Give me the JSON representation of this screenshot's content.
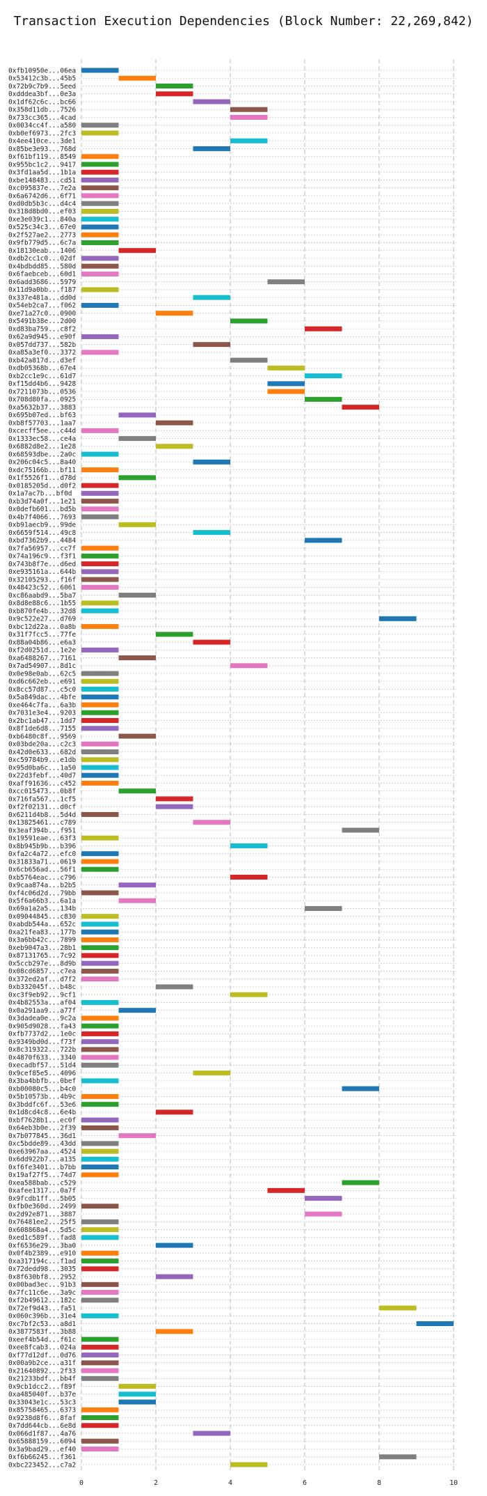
{
  "title": "Transaction Execution Dependencies (Block Number: 22,269,842)",
  "palette": [
    "#1f77b4",
    "#ff7f0e",
    "#2ca02c",
    "#d62728",
    "#9467bd",
    "#8c564b",
    "#e377c2",
    "#7f7f7f",
    "#bcbd22",
    "#17becf"
  ],
  "chart_data": {
    "type": "bar",
    "orientation": "horizontal-gantt",
    "title": "Transaction Execution Dependencies (Block Number: 22,269,842)",
    "xlabel": "",
    "ylabel": "",
    "xlim": [
      0,
      10
    ],
    "xticks": [
      0,
      2,
      4,
      6,
      8,
      10
    ],
    "grid": true,
    "bars": [
      {
        "tx": "0xfb10950e...06ea",
        "start": 0,
        "end": 1
      },
      {
        "tx": "0x53412c3b...45b5",
        "start": 1,
        "end": 2
      },
      {
        "tx": "0x72b9c7b9...5eed",
        "start": 2,
        "end": 3
      },
      {
        "tx": "0xdddea3bf...0e3a",
        "start": 2,
        "end": 3
      },
      {
        "tx": "0x1df62c6c...bc66",
        "start": 3,
        "end": 4
      },
      {
        "tx": "0x358d11db...7526",
        "start": 4,
        "end": 5
      },
      {
        "tx": "0x733cc365...4cad",
        "start": 4,
        "end": 5
      },
      {
        "tx": "0x0034cc4f...a580",
        "start": 0,
        "end": 1
      },
      {
        "tx": "0xb0ef6973...2fc3",
        "start": 0,
        "end": 1
      },
      {
        "tx": "0x4ee410ce...3de1",
        "start": 4,
        "end": 5
      },
      {
        "tx": "0x85be3e93...768d",
        "start": 3,
        "end": 4
      },
      {
        "tx": "0xf61bf119...8549",
        "start": 0,
        "end": 1
      },
      {
        "tx": "0x955bc1c2...9417",
        "start": 0,
        "end": 1
      },
      {
        "tx": "0x3fd1aa5d...1b1a",
        "start": 0,
        "end": 1
      },
      {
        "tx": "0xbe148483...cd51",
        "start": 0,
        "end": 1
      },
      {
        "tx": "0xc095837e...7e2a",
        "start": 0,
        "end": 1
      },
      {
        "tx": "0x6a6742d6...6f71",
        "start": 0,
        "end": 1
      },
      {
        "tx": "0xd0db5b3c...d4c4",
        "start": 0,
        "end": 1
      },
      {
        "tx": "0x318d8bd0...ef03",
        "start": 0,
        "end": 1
      },
      {
        "tx": "0xe3e039c1...840a",
        "start": 0,
        "end": 1
      },
      {
        "tx": "0x525c34c3...67e0",
        "start": 0,
        "end": 1
      },
      {
        "tx": "0x2f527ae2...2773",
        "start": 0,
        "end": 1
      },
      {
        "tx": "0x9fb779d5...6c7a",
        "start": 0,
        "end": 1
      },
      {
        "tx": "0x18130eab...1406",
        "start": 1,
        "end": 2
      },
      {
        "tx": "0xdb2cc1c0...02df",
        "start": 0,
        "end": 1
      },
      {
        "tx": "0x4bdbdd85...580d",
        "start": 0,
        "end": 1
      },
      {
        "tx": "0x6faebceb...60d1",
        "start": 0,
        "end": 1
      },
      {
        "tx": "0x6add3686...5979",
        "start": 5,
        "end": 6
      },
      {
        "tx": "0x11d9a0bb...f187",
        "start": 0,
        "end": 1
      },
      {
        "tx": "0x337e481a...dd0d",
        "start": 3,
        "end": 4
      },
      {
        "tx": "0x54eb2ca7...f062",
        "start": 0,
        "end": 1
      },
      {
        "tx": "0xe71a27c0...0900",
        "start": 2,
        "end": 3
      },
      {
        "tx": "0x5491b38e...2d00",
        "start": 4,
        "end": 5
      },
      {
        "tx": "0xd83ba759...c8f2",
        "start": 6,
        "end": 7
      },
      {
        "tx": "0x62a9d945...e90f",
        "start": 0,
        "end": 1
      },
      {
        "tx": "0x057dd737...582b",
        "start": 3,
        "end": 4
      },
      {
        "tx": "0xa85a3ef0...3372",
        "start": 0,
        "end": 1
      },
      {
        "tx": "0xb42a817d...d3ef",
        "start": 4,
        "end": 5
      },
      {
        "tx": "0xdb05368b...67e4",
        "start": 5,
        "end": 6
      },
      {
        "tx": "0xb2cc1e9c...61d7",
        "start": 6,
        "end": 7
      },
      {
        "tx": "0xf15dd4b6...9428",
        "start": 5,
        "end": 6
      },
      {
        "tx": "0x7211073b...0536",
        "start": 5,
        "end": 6
      },
      {
        "tx": "0x708d80fa...0925",
        "start": 6,
        "end": 7
      },
      {
        "tx": "0xa5632b37...3883",
        "start": 7,
        "end": 8
      },
      {
        "tx": "0x695b07ed...bf63",
        "start": 1,
        "end": 2
      },
      {
        "tx": "0xb8f57703...1aa7",
        "start": 2,
        "end": 3
      },
      {
        "tx": "0xcecff5ee...c44d",
        "start": 0,
        "end": 1
      },
      {
        "tx": "0x1333ec58...ce4a",
        "start": 1,
        "end": 2
      },
      {
        "tx": "0x6882d8e2...1e28",
        "start": 2,
        "end": 3
      },
      {
        "tx": "0x68593dbe...2a0c",
        "start": 0,
        "end": 1
      },
      {
        "tx": "0x206c04c5...8a40",
        "start": 3,
        "end": 4
      },
      {
        "tx": "0xdc75166b...bf11",
        "start": 0,
        "end": 1
      },
      {
        "tx": "0x1f5526f1...d78d",
        "start": 1,
        "end": 2
      },
      {
        "tx": "0x0185205d...d0f2",
        "start": 0,
        "end": 1
      },
      {
        "tx": "0x1a7ac7b...bf0d",
        "start": 0,
        "end": 1
      },
      {
        "tx": "0xb3d74a0f...1e21",
        "start": 0,
        "end": 1
      },
      {
        "tx": "0x0defb601...bd5b",
        "start": 0,
        "end": 1
      },
      {
        "tx": "0x4b7f4066...7693",
        "start": 0,
        "end": 1
      },
      {
        "tx": "0xb91aecb9...99de",
        "start": 1,
        "end": 2
      },
      {
        "tx": "0x6659f514...49c8",
        "start": 3,
        "end": 4
      },
      {
        "tx": "0xbd7362b9...4484",
        "start": 6,
        "end": 7
      },
      {
        "tx": "0x7fa56957...cc7f",
        "start": 0,
        "end": 1
      },
      {
        "tx": "0x74a196c9...f3f1",
        "start": 0,
        "end": 1
      },
      {
        "tx": "0x743b8f7e...d6ed",
        "start": 0,
        "end": 1
      },
      {
        "tx": "0xe935161a...644b",
        "start": 0,
        "end": 1
      },
      {
        "tx": "0x32105293...f16f",
        "start": 0,
        "end": 1
      },
      {
        "tx": "0x48423c52...6061",
        "start": 0,
        "end": 1
      },
      {
        "tx": "0xc86aabd9...5ba7",
        "start": 1,
        "end": 2
      },
      {
        "tx": "0x8d8e88c6...1b55",
        "start": 0,
        "end": 1
      },
      {
        "tx": "0xb870fe4b...32d8",
        "start": 0,
        "end": 1
      },
      {
        "tx": "0x9c522e27...d769",
        "start": 8,
        "end": 9
      },
      {
        "tx": "0xbc12d22a...0a8b",
        "start": 0,
        "end": 1
      },
      {
        "tx": "0x31f7fcc5...77fe",
        "start": 2,
        "end": 3
      },
      {
        "tx": "0x88a04b86...e6a3",
        "start": 3,
        "end": 4
      },
      {
        "tx": "0xf2d0251d...1e2e",
        "start": 0,
        "end": 1
      },
      {
        "tx": "0xa6488267...7161",
        "start": 1,
        "end": 2
      },
      {
        "tx": "0x7ad54907...8d1c",
        "start": 4,
        "end": 5
      },
      {
        "tx": "0x0e98e0ab...62c5",
        "start": 0,
        "end": 1
      },
      {
        "tx": "0xd6c662eb...e691",
        "start": 0,
        "end": 1
      },
      {
        "tx": "0x8cc57d87...c5c0",
        "start": 0,
        "end": 1
      },
      {
        "tx": "0x5a849dac...4bfe",
        "start": 0,
        "end": 1
      },
      {
        "tx": "0xe464c7fa...6a3b",
        "start": 0,
        "end": 1
      },
      {
        "tx": "0x7031e3e4...9203",
        "start": 0,
        "end": 1
      },
      {
        "tx": "0x2bc1ab47...1dd7",
        "start": 0,
        "end": 1
      },
      {
        "tx": "0x8f1de6d8...7155",
        "start": 0,
        "end": 1
      },
      {
        "tx": "0xb6480c8f...9569",
        "start": 1,
        "end": 2
      },
      {
        "tx": "0x03bde20a...c2c3",
        "start": 0,
        "end": 1
      },
      {
        "tx": "0x42d0e633...682d",
        "start": 0,
        "end": 1
      },
      {
        "tx": "0xc59784b9...e1db",
        "start": 0,
        "end": 1
      },
      {
        "tx": "0x95d0ba6c...1a50",
        "start": 0,
        "end": 1
      },
      {
        "tx": "0x22d3febf...40d7",
        "start": 0,
        "end": 1
      },
      {
        "tx": "0xaff91636...c452",
        "start": 0,
        "end": 1
      },
      {
        "tx": "0xcc015473...0b8f",
        "start": 1,
        "end": 2
      },
      {
        "tx": "0x716fa567...1cf5",
        "start": 2,
        "end": 3
      },
      {
        "tx": "0xf2f02131...d0cf",
        "start": 2,
        "end": 3
      },
      {
        "tx": "0x6211d4b8...5d4d",
        "start": 0,
        "end": 1
      },
      {
        "tx": "0x13825461...c789",
        "start": 3,
        "end": 4
      },
      {
        "tx": "0x3eaf394b...f951",
        "start": 7,
        "end": 8
      },
      {
        "tx": "0x19591eae...63f3",
        "start": 0,
        "end": 1
      },
      {
        "tx": "0x8b945b9b...b396",
        "start": 4,
        "end": 5
      },
      {
        "tx": "0xfa2c4a72...efc0",
        "start": 0,
        "end": 1
      },
      {
        "tx": "0x31833a71...0619",
        "start": 0,
        "end": 1
      },
      {
        "tx": "0x6cb656ad...56f1",
        "start": 0,
        "end": 1
      },
      {
        "tx": "0xb5764eac...c796",
        "start": 4,
        "end": 5
      },
      {
        "tx": "0x9caa874a...b2b5",
        "start": 1,
        "end": 2
      },
      {
        "tx": "0xf4c06d2d...79bb",
        "start": 0,
        "end": 1
      },
      {
        "tx": "0x5f6a66b3...6a1a",
        "start": 1,
        "end": 2
      },
      {
        "tx": "0x69a1a2a5...134b",
        "start": 6,
        "end": 7
      },
      {
        "tx": "0x09044845...c830",
        "start": 0,
        "end": 1
      },
      {
        "tx": "0xabdb544a...652c",
        "start": 0,
        "end": 1
      },
      {
        "tx": "0xa21fea83...177b",
        "start": 0,
        "end": 1
      },
      {
        "tx": "0x3a6bb42c...7899",
        "start": 0,
        "end": 1
      },
      {
        "tx": "0xeb9047a3...28b1",
        "start": 0,
        "end": 1
      },
      {
        "tx": "0x87131765...7c92",
        "start": 0,
        "end": 1
      },
      {
        "tx": "0x5ccb297e...8d9b",
        "start": 0,
        "end": 1
      },
      {
        "tx": "0x08cd6857...c7ea",
        "start": 0,
        "end": 1
      },
      {
        "tx": "0x372ed2af...d7f2",
        "start": 0,
        "end": 1
      },
      {
        "tx": "0xb332045f...b48c",
        "start": 2,
        "end": 3
      },
      {
        "tx": "0xc3f9eb92...9cf1",
        "start": 4,
        "end": 5
      },
      {
        "tx": "0x4b82553a...af04",
        "start": 0,
        "end": 1
      },
      {
        "tx": "0x0a291aa9...a77f",
        "start": 1,
        "end": 2
      },
      {
        "tx": "0x3dadea0e...9c2a",
        "start": 0,
        "end": 1
      },
      {
        "tx": "0x905d9028...fa43",
        "start": 0,
        "end": 1
      },
      {
        "tx": "0xfb7737d2...1e0c",
        "start": 0,
        "end": 1
      },
      {
        "tx": "0x9349bd0d...f73f",
        "start": 0,
        "end": 1
      },
      {
        "tx": "0x8c319322...722b",
        "start": 0,
        "end": 1
      },
      {
        "tx": "0x4870f633...3340",
        "start": 0,
        "end": 1
      },
      {
        "tx": "0xecadbf57...51d4",
        "start": 0,
        "end": 1
      },
      {
        "tx": "0x9cef85e5...4096",
        "start": 3,
        "end": 4
      },
      {
        "tx": "0x3ba4bbfb...0bef",
        "start": 0,
        "end": 1
      },
      {
        "tx": "0xb00080c5...b4c0",
        "start": 7,
        "end": 8
      },
      {
        "tx": "0x5b10573b...4b9c",
        "start": 0,
        "end": 1
      },
      {
        "tx": "0x3bddfc6f...53e6",
        "start": 0,
        "end": 1
      },
      {
        "tx": "0x1d8cd4c8...6e4b",
        "start": 2,
        "end": 3
      },
      {
        "tx": "0xbf7628b1...ec0f",
        "start": 0,
        "end": 1
      },
      {
        "tx": "0x64eb3b0e...2f39",
        "start": 0,
        "end": 1
      },
      {
        "tx": "0x7b077845...36d1",
        "start": 1,
        "end": 2
      },
      {
        "tx": "0xc5bdde89...43dd",
        "start": 0,
        "end": 1
      },
      {
        "tx": "0xe63967aa...4524",
        "start": 0,
        "end": 1
      },
      {
        "tx": "0x6dd922b7...a135",
        "start": 0,
        "end": 1
      },
      {
        "tx": "0xf6fe3401...b7bb",
        "start": 0,
        "end": 1
      },
      {
        "tx": "0x19af27f5...74d7",
        "start": 0,
        "end": 1
      },
      {
        "tx": "0xea588bab...c529",
        "start": 7,
        "end": 8
      },
      {
        "tx": "0xafee1317...0a7f",
        "start": 5,
        "end": 6
      },
      {
        "tx": "0x9fcdb1ff...5b05",
        "start": 6,
        "end": 7
      },
      {
        "tx": "0xfb0e360d...2499",
        "start": 0,
        "end": 1
      },
      {
        "tx": "0x2d92e871...3887",
        "start": 6,
        "end": 7
      },
      {
        "tx": "0x76481ee2...25f5",
        "start": 0,
        "end": 1
      },
      {
        "tx": "0x608868a4...5d5c",
        "start": 0,
        "end": 1
      },
      {
        "tx": "0xed1c589f...fad8",
        "start": 0,
        "end": 1
      },
      {
        "tx": "0xf6536e29...3ba0",
        "start": 2,
        "end": 3
      },
      {
        "tx": "0x0f4b2389...e910",
        "start": 0,
        "end": 1
      },
      {
        "tx": "0xa317194c...f1ad",
        "start": 0,
        "end": 1
      },
      {
        "tx": "0x72dedd98...3035",
        "start": 0,
        "end": 1
      },
      {
        "tx": "0x8f630bf8...2952",
        "start": 2,
        "end": 3
      },
      {
        "tx": "0x00bad3ec...91b3",
        "start": 0,
        "end": 1
      },
      {
        "tx": "0x7fc11c6e...3a9c",
        "start": 0,
        "end": 1
      },
      {
        "tx": "0xf2b49612...182c",
        "start": 0,
        "end": 1
      },
      {
        "tx": "0x72ef9d43...fa51",
        "start": 8,
        "end": 9
      },
      {
        "tx": "0x060c396b...31e4",
        "start": 0,
        "end": 1
      },
      {
        "tx": "0xc7bf2c53...a8d1",
        "start": 9,
        "end": 10
      },
      {
        "tx": "0x3877583f...3b88",
        "start": 2,
        "end": 3
      },
      {
        "tx": "0xeef4b54d...f61c",
        "start": 0,
        "end": 1
      },
      {
        "tx": "0xee8fcab3...024a",
        "start": 0,
        "end": 1
      },
      {
        "tx": "0xf77d12df...0d76",
        "start": 0,
        "end": 1
      },
      {
        "tx": "0x00a9b2ce...a31f",
        "start": 0,
        "end": 1
      },
      {
        "tx": "0x21640892...2f33",
        "start": 0,
        "end": 1
      },
      {
        "tx": "0x21233bdf...bb4f",
        "start": 0,
        "end": 1
      },
      {
        "tx": "0x9cb1dcc2...f89f",
        "start": 1,
        "end": 2
      },
      {
        "tx": "0xa485040f...b37e",
        "start": 1,
        "end": 2
      },
      {
        "tx": "0x33043e1c...53c3",
        "start": 1,
        "end": 2
      },
      {
        "tx": "0x85758465...6373",
        "start": 0,
        "end": 1
      },
      {
        "tx": "0x9238d8f6...8faf",
        "start": 0,
        "end": 1
      },
      {
        "tx": "0x7dd644cb...6e8d",
        "start": 0,
        "end": 1
      },
      {
        "tx": "0x066d1f87...4a76",
        "start": 3,
        "end": 4
      },
      {
        "tx": "0x65888159...6094",
        "start": 0,
        "end": 1
      },
      {
        "tx": "0x3a9bad29...ef40",
        "start": 0,
        "end": 1
      },
      {
        "tx": "0xf6b66245...f361",
        "start": 8,
        "end": 9
      },
      {
        "tx": "0xbc223452...c7a2",
        "start": 4,
        "end": 5
      }
    ]
  }
}
